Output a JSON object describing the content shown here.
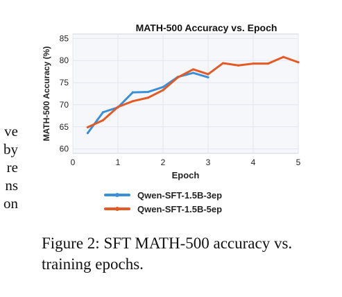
{
  "side_text": [
    "ve",
    "by",
    "re",
    "ns",
    "on"
  ],
  "caption": "Figure 2:  SFT MATH-500 accuracy vs. training epochs.",
  "chart_data": {
    "type": "line",
    "title": "MATH-500 Accuracy vs. Epoch",
    "xlabel": "Epoch",
    "ylabel": "MATH-500 Accuracy (%)",
    "xlim": [
      0,
      5
    ],
    "ylim": [
      59,
      86
    ],
    "xticks": [
      0,
      1,
      2,
      3,
      4,
      5
    ],
    "yticks": [
      60,
      65,
      70,
      75,
      80,
      85
    ],
    "grid": true,
    "legend_placement": "below",
    "series": [
      {
        "name": "Qwen-SFT-1.5B-3ep",
        "color": "#3a8fd9",
        "x": [
          0.33,
          0.67,
          1.0,
          1.33,
          1.67,
          2.0,
          2.33,
          2.67,
          3.0
        ],
        "y": [
          63.6,
          68.3,
          69.4,
          72.8,
          72.9,
          74.0,
          76.3,
          77.2,
          76.2
        ]
      },
      {
        "name": "Qwen-SFT-1.5B-5ep",
        "color": "#e35a24",
        "x": [
          0.33,
          0.67,
          1.0,
          1.33,
          1.67,
          2.0,
          2.33,
          2.67,
          3.0,
          3.33,
          3.67,
          4.0,
          4.33,
          4.67,
          5.0
        ],
        "y": [
          64.9,
          66.5,
          69.5,
          70.8,
          71.6,
          73.3,
          76.2,
          78.0,
          76.9,
          79.4,
          78.9,
          79.3,
          79.3,
          80.8,
          79.6
        ]
      }
    ]
  }
}
